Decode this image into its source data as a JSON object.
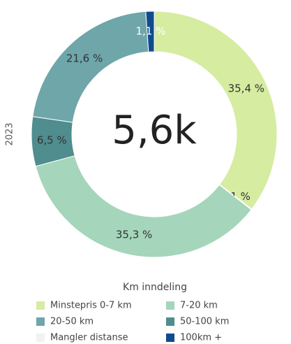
{
  "chart_data": {
    "type": "donut",
    "center_label": "5,6k",
    "side_label": "2023",
    "legend_title": "Km inndeling",
    "categories": [
      "Minstepris 0-7 km",
      "Mangler distanse",
      "7-20 km",
      "50-100 km",
      "20-50 km",
      "100km +"
    ],
    "values": [
      35.4,
      0.1,
      35.3,
      6.5,
      21.6,
      1.1
    ],
    "value_labels": [
      "35,4 %",
      "0,1 %",
      "35,3 %",
      "6,5 %",
      "21,6 %",
      "1,1 %"
    ],
    "colors": [
      "#d6eca0",
      "#f2f2f2",
      "#a5d5ba",
      "#4f8d8f",
      "#6ea6aa",
      "#0f4c8c"
    ]
  }
}
